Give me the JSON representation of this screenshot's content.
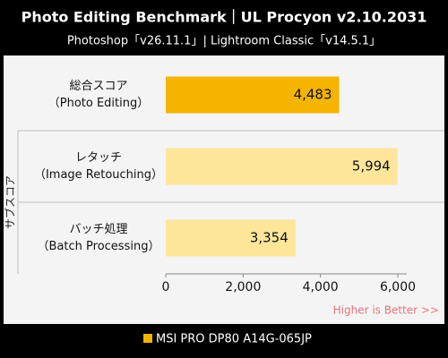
{
  "chart_data": {
    "type": "bar",
    "orientation": "horizontal",
    "title": "Photo Editing Benchmark｜UL Procyon v2.10.2031",
    "subtitle": "Photoshop「v26.11.1」| Lightroom Classic「v14.5.1」",
    "categories": [
      [
        "総合スコア",
        "（Photo Editing）"
      ],
      [
        "レタッチ",
        "（Image Retouching）"
      ],
      [
        "バッチ処理",
        "（Batch Processing）"
      ]
    ],
    "group_label": "サブスコア",
    "series": [
      {
        "name": "MSI PRO DP80 A14G-065JP",
        "color": "#f5b400",
        "values": [
          4483,
          5994,
          3354
        ],
        "value_labels": [
          "4,483",
          "5,994",
          "3,354"
        ],
        "bar_colors": [
          "#f5b400",
          "#fde69a",
          "#fde69a"
        ]
      }
    ],
    "xlim": [
      0,
      6000
    ],
    "xticks": [
      0,
      {
        "value": 2000,
        "label": "2,000"
      },
      {
        "value": 4000,
        "label": "4,000"
      },
      {
        "value": 6000,
        "label": "6,000"
      }
    ],
    "annotation": "Higher is Better >>",
    "grid": false
  }
}
